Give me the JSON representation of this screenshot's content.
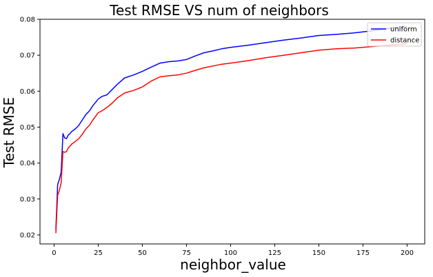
{
  "chart_data": {
    "type": "line",
    "title": "Test RMSE VS num of neighbors",
    "xlabel": "neighbor_value",
    "ylabel": "Test RMSE",
    "xlim": [
      -8,
      210
    ],
    "ylim": [
      0.0175,
      0.08
    ],
    "x_ticks": [
      0,
      25,
      50,
      75,
      100,
      125,
      150,
      175,
      200
    ],
    "y_ticks": [
      0.02,
      0.03,
      0.04,
      0.05,
      0.06,
      0.07,
      0.08
    ],
    "x_tick_labels": [
      "0",
      "25",
      "50",
      "75",
      "100",
      "125",
      "150",
      "175",
      "200"
    ],
    "y_tick_labels": [
      "0.02",
      "0.03",
      "0.04",
      "0.05",
      "0.06",
      "0.07",
      "0.08"
    ],
    "grid": false,
    "legend_position": "top-right",
    "series": [
      {
        "name": "uniform",
        "color": "#0000ff",
        "x": [
          1,
          2,
          3,
          4,
          5,
          6,
          7,
          8,
          9,
          10,
          12,
          14,
          16,
          18,
          20,
          22,
          25,
          27,
          30,
          33,
          36,
          40,
          45,
          50,
          55,
          60,
          65,
          70,
          75,
          80,
          85,
          90,
          95,
          100,
          110,
          120,
          130,
          140,
          150,
          160,
          170,
          180,
          190,
          200
        ],
        "y": [
          0.0215,
          0.034,
          0.0355,
          0.0375,
          0.0482,
          0.047,
          0.0468,
          0.0478,
          0.0482,
          0.0488,
          0.0495,
          0.0505,
          0.052,
          0.0535,
          0.0545,
          0.056,
          0.0578,
          0.0585,
          0.059,
          0.0605,
          0.062,
          0.0637,
          0.0645,
          0.0655,
          0.0667,
          0.0678,
          0.0682,
          0.0684,
          0.0688,
          0.0698,
          0.0707,
          0.0712,
          0.0718,
          0.0722,
          0.0728,
          0.0735,
          0.0742,
          0.0748,
          0.0755,
          0.0758,
          0.0762,
          0.0768,
          0.0775,
          0.078
        ]
      },
      {
        "name": "distance",
        "color": "#ff0000",
        "x": [
          1,
          2,
          3,
          4,
          5,
          6,
          7,
          8,
          9,
          10,
          12,
          14,
          16,
          18,
          20,
          22,
          25,
          27,
          30,
          33,
          36,
          40,
          45,
          50,
          55,
          60,
          65,
          70,
          75,
          80,
          85,
          90,
          95,
          100,
          110,
          120,
          130,
          140,
          150,
          160,
          170,
          180,
          190,
          200
        ],
        "y": [
          0.0205,
          0.031,
          0.0325,
          0.0345,
          0.0432,
          0.043,
          0.0432,
          0.0442,
          0.0447,
          0.0453,
          0.046,
          0.0468,
          0.048,
          0.0495,
          0.0505,
          0.052,
          0.054,
          0.0545,
          0.0555,
          0.0567,
          0.0582,
          0.0595,
          0.0602,
          0.0612,
          0.0628,
          0.064,
          0.0643,
          0.0645,
          0.065,
          0.0658,
          0.0665,
          0.067,
          0.0675,
          0.0678,
          0.0685,
          0.0693,
          0.07,
          0.0707,
          0.0714,
          0.0718,
          0.072,
          0.0724,
          0.0728,
          0.0732
        ]
      }
    ]
  }
}
